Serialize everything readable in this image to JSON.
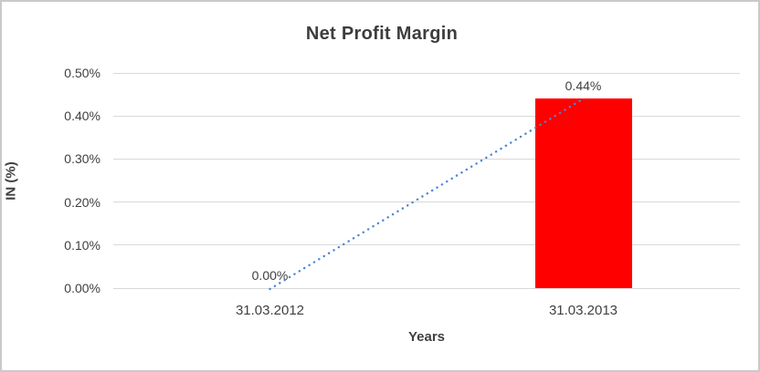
{
  "window": {
    "background": "#ffffff",
    "border_color": "#c9c9c9"
  },
  "chart_data": {
    "type": "bar",
    "title": "Net Profit Margin",
    "xlabel": "Years",
    "ylabel": "IN (%)",
    "categories": [
      "31.03.2012",
      "31.03.2013"
    ],
    "series": [
      {
        "name": "Net Profit Margin",
        "values": [
          0.0,
          0.44
        ]
      }
    ],
    "data_labels": [
      "0.00%",
      "0.44%"
    ],
    "yticks": [
      "0.00%",
      "0.10%",
      "0.20%",
      "0.30%",
      "0.40%",
      "0.50%"
    ],
    "ylim": [
      0,
      0.5
    ],
    "grid": true,
    "legend": false,
    "bar_color": "#ff0000",
    "gridline_color": "#d9d9d9",
    "text_color": "#404040",
    "trendline": {
      "type": "linear",
      "style": "dotted",
      "color": "#4a86d4",
      "points": [
        [
          0,
          0.0
        ],
        [
          1,
          0.44
        ]
      ]
    }
  }
}
